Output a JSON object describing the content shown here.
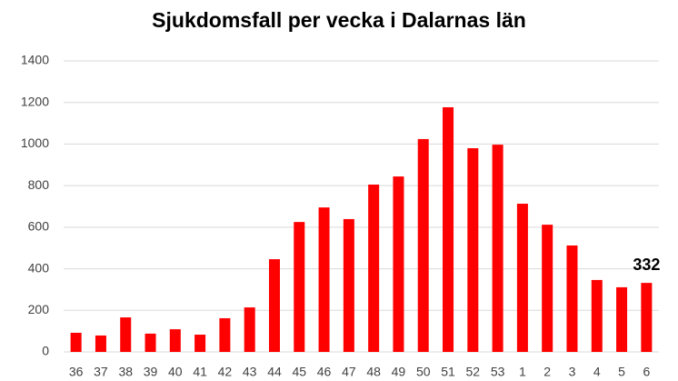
{
  "chart_data": {
    "type": "bar",
    "title": "Sjukdomsfall per vecka i Dalarnas län",
    "categories": [
      "36",
      "37",
      "38",
      "39",
      "40",
      "41",
      "42",
      "43",
      "44",
      "45",
      "46",
      "47",
      "48",
      "49",
      "50",
      "51",
      "52",
      "53",
      "1",
      "2",
      "3",
      "4",
      "5",
      "6"
    ],
    "values": [
      92,
      79,
      166,
      88,
      109,
      83,
      162,
      214,
      446,
      625,
      695,
      639,
      805,
      844,
      1024,
      1177,
      980,
      997,
      713,
      612,
      512,
      346,
      311,
      332
    ],
    "value_labels": [
      null,
      null,
      null,
      null,
      null,
      null,
      null,
      null,
      null,
      null,
      null,
      null,
      null,
      null,
      null,
      null,
      null,
      null,
      null,
      null,
      null,
      null,
      null,
      "332"
    ],
    "color": "#ff0000",
    "ylim": [
      0,
      1400
    ],
    "yticks": [
      0,
      200,
      400,
      600,
      800,
      1000,
      1200,
      1400
    ],
    "grid": true
  }
}
